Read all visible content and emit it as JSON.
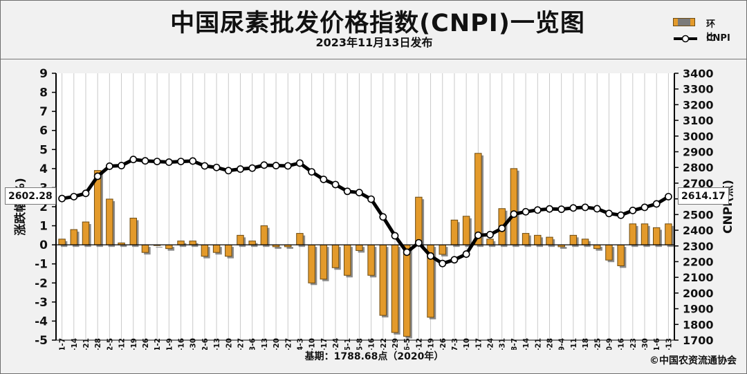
{
  "header": {
    "title": "中国尿素批发价格指数(CNPI)一览图",
    "subtitle": "2023年11月13日发布"
  },
  "legend": {
    "bar_label": "环比",
    "line_label": "CNPI"
  },
  "footer": {
    "baseline_text": "基期：1788.68点（2020年）",
    "copyright": "©中国农资流通协会"
  },
  "callouts": {
    "start_value": "2602.28",
    "end_value": "2614.17"
  },
  "colors": {
    "bar_fill": "#e39a2b",
    "bar_edge": "#6b4a12",
    "line": "#000000",
    "marker_fill": "#ffffff",
    "grid": "#c9c9c9"
  },
  "chart_data": {
    "type": "bar+line",
    "categories": [
      "11-7",
      "11-14",
      "11-21",
      "11-28",
      "12-5",
      "12-12",
      "12-19",
      "12-26",
      "2023-1-2",
      "1-9",
      "1-16",
      "1-30",
      "2-6",
      "2-13",
      "2-20",
      "2-27",
      "3-6",
      "3-13",
      "3-20",
      "3-27",
      "4-3",
      "4-10",
      "4-17",
      "4-24",
      "5-1",
      "5-8",
      "5-16",
      "5-22",
      "5-29",
      "6-5",
      "6-12",
      "6-19",
      "6-26",
      "7-3",
      "7-10",
      "7-17",
      "7-24",
      "7-31",
      "8-7",
      "8-14",
      "8-21",
      "8-28",
      "9-4",
      "9-11",
      "9-18",
      "9-25",
      "10-9",
      "10-16",
      "10-23",
      "10-30",
      "11-6",
      "11-13"
    ],
    "series": [
      {
        "name": "环比",
        "type": "bar",
        "axis": "left",
        "values": [
          0.3,
          0.8,
          1.2,
          3.9,
          2.4,
          0.1,
          1.4,
          -0.4,
          0.0,
          -0.2,
          0.2,
          0.2,
          -0.6,
          -0.4,
          -0.6,
          0.5,
          0.2,
          1.0,
          -0.1,
          -0.1,
          0.6,
          -2.0,
          -1.8,
          -1.2,
          -1.6,
          -0.3,
          -1.6,
          -3.7,
          -4.6,
          -4.8,
          2.5,
          -3.8,
          -0.5,
          1.3,
          1.5,
          4.8,
          0.3,
          1.9,
          4.0,
          0.6,
          0.5,
          0.4,
          -0.1,
          0.5,
          0.3,
          -0.2,
          -0.8,
          -1.1,
          1.1,
          1.1,
          0.9,
          1.1
        ]
      },
      {
        "name": "CNPI",
        "type": "line",
        "axis": "right",
        "values": [
          2602,
          2614,
          2635,
          2744,
          2808,
          2812,
          2851,
          2842,
          2838,
          2834,
          2838,
          2841,
          2810,
          2800,
          2780,
          2790,
          2796,
          2815,
          2812,
          2810,
          2828,
          2772,
          2724,
          2691,
          2648,
          2640,
          2598,
          2485,
          2365,
          2260,
          2320,
          2236,
          2188,
          2212,
          2248,
          2368,
          2372,
          2412,
          2503,
          2518,
          2529,
          2536,
          2534,
          2542,
          2546,
          2537,
          2507,
          2496,
          2526,
          2546,
          2568,
          2614
        ]
      }
    ],
    "y_left": {
      "label": "涨跌幅(%)",
      "min": -5,
      "max": 9,
      "ticks": [
        9,
        8,
        7,
        6,
        5,
        4,
        3,
        2,
        1,
        0,
        -1,
        -2,
        -3,
        -4,
        -5
      ]
    },
    "y_right": {
      "label": "CNPI(点)",
      "min": 1700,
      "max": 3400,
      "ticks": [
        3400,
        3300,
        3200,
        3100,
        3000,
        2900,
        2800,
        2700,
        2600,
        2500,
        2400,
        2300,
        2200,
        2100,
        2000,
        1900,
        1800,
        1700
      ]
    },
    "grid": "vertical"
  }
}
